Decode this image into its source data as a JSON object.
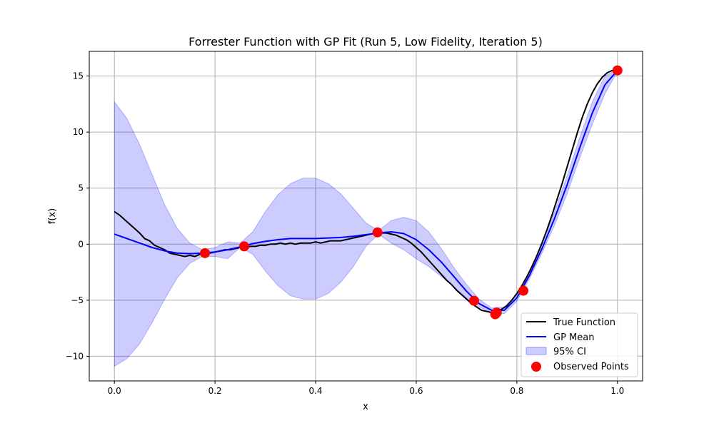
{
  "chart_data": {
    "type": "line",
    "title": "Forrester Function with GP Fit (Run 5, Low Fidelity, Iteration 5)",
    "xlabel": "x",
    "ylabel": "f(x)",
    "xlim": [
      -0.05,
      1.05
    ],
    "ylim": [
      -12.2,
      17.2
    ],
    "xticks": [
      0.0,
      0.2,
      0.4,
      0.6,
      0.8,
      1.0
    ],
    "xtick_labels": [
      "0.0",
      "0.2",
      "0.4",
      "0.6",
      "0.8",
      "1.0"
    ],
    "yticks": [
      -10,
      -5,
      0,
      5,
      10,
      15
    ],
    "ytick_labels": [
      "−10",
      "−5",
      "0",
      "5",
      "10",
      "15"
    ],
    "grid": true,
    "legend_position": "lower-right",
    "series": [
      {
        "name": "True Function",
        "kind": "line",
        "color": "#000000",
        "x": [
          0.0,
          0.01,
          0.02,
          0.03,
          0.04,
          0.05,
          0.06,
          0.07,
          0.08,
          0.09,
          0.1,
          0.11,
          0.12,
          0.13,
          0.14,
          0.15,
          0.16,
          0.17,
          0.18,
          0.19,
          0.2,
          0.21,
          0.22,
          0.23,
          0.24,
          0.25,
          0.26,
          0.27,
          0.28,
          0.29,
          0.3,
          0.31,
          0.32,
          0.33,
          0.34,
          0.35,
          0.36,
          0.37,
          0.38,
          0.39,
          0.4,
          0.41,
          0.42,
          0.43,
          0.44,
          0.45,
          0.46,
          0.47,
          0.48,
          0.49,
          0.5,
          0.51,
          0.52,
          0.53,
          0.54,
          0.55,
          0.56,
          0.57,
          0.58,
          0.59,
          0.6,
          0.61,
          0.62,
          0.63,
          0.64,
          0.65,
          0.66,
          0.67,
          0.68,
          0.69,
          0.7,
          0.71,
          0.72,
          0.73,
          0.74,
          0.75,
          0.76,
          0.77,
          0.78,
          0.79,
          0.8,
          0.81,
          0.82,
          0.83,
          0.84,
          0.85,
          0.86,
          0.87,
          0.88,
          0.89,
          0.9,
          0.91,
          0.92,
          0.93,
          0.94,
          0.95,
          0.96,
          0.97,
          0.98,
          0.99,
          1.0
        ],
        "y": [
          2.9,
          2.6,
          2.2,
          1.8,
          1.4,
          1.0,
          0.5,
          0.3,
          -0.1,
          -0.3,
          -0.5,
          -0.8,
          -0.9,
          -1.0,
          -1.1,
          -1.0,
          -1.1,
          -0.9,
          -0.9,
          -0.8,
          -0.7,
          -0.6,
          -0.5,
          -0.5,
          -0.4,
          -0.3,
          -0.3,
          -0.2,
          -0.2,
          -0.1,
          -0.1,
          0.0,
          0.0,
          0.1,
          0.0,
          0.1,
          0.0,
          0.1,
          0.1,
          0.1,
          0.2,
          0.1,
          0.2,
          0.3,
          0.3,
          0.3,
          0.4,
          0.5,
          0.6,
          0.7,
          0.8,
          0.9,
          1.0,
          1.0,
          1.0,
          0.9,
          0.8,
          0.6,
          0.4,
          0.1,
          -0.3,
          -0.7,
          -1.2,
          -1.7,
          -2.2,
          -2.7,
          -3.2,
          -3.6,
          -4.1,
          -4.5,
          -4.9,
          -5.3,
          -5.6,
          -5.9,
          -6.0,
          -6.1,
          -6.0,
          -5.8,
          -5.5,
          -5.0,
          -4.4,
          -3.7,
          -2.9,
          -2.0,
          -1.0,
          0.1,
          1.3,
          2.6,
          4.0,
          5.4,
          6.9,
          8.4,
          9.9,
          11.3,
          12.5,
          13.5,
          14.3,
          14.9,
          15.3,
          15.5,
          15.5
        ]
      },
      {
        "name": "GP Mean",
        "kind": "line",
        "color": "#0000ff",
        "x": [
          0.0,
          0.025,
          0.05,
          0.075,
          0.1,
          0.125,
          0.15,
          0.175,
          0.2,
          0.225,
          0.25,
          0.275,
          0.3,
          0.325,
          0.35,
          0.375,
          0.4,
          0.425,
          0.45,
          0.475,
          0.5,
          0.525,
          0.55,
          0.575,
          0.6,
          0.625,
          0.65,
          0.675,
          0.7,
          0.725,
          0.75,
          0.775,
          0.8,
          0.825,
          0.85,
          0.875,
          0.9,
          0.925,
          0.95,
          0.975,
          1.0
        ],
        "y": [
          0.9,
          0.5,
          0.1,
          -0.3,
          -0.6,
          -0.8,
          -0.85,
          -0.8,
          -0.7,
          -0.5,
          -0.25,
          0.05,
          0.25,
          0.4,
          0.5,
          0.5,
          0.5,
          0.55,
          0.6,
          0.7,
          0.85,
          1.0,
          1.1,
          0.95,
          0.4,
          -0.5,
          -1.6,
          -2.9,
          -4.2,
          -5.3,
          -5.9,
          -5.9,
          -4.8,
          -2.8,
          -0.4,
          2.3,
          5.3,
          8.6,
          11.7,
          14.2,
          15.5
        ]
      },
      {
        "name": "95% CI",
        "kind": "band",
        "color": "#0000ff",
        "x": [
          0.0,
          0.025,
          0.05,
          0.075,
          0.1,
          0.125,
          0.15,
          0.175,
          0.2,
          0.225,
          0.25,
          0.275,
          0.3,
          0.325,
          0.35,
          0.375,
          0.4,
          0.425,
          0.45,
          0.475,
          0.5,
          0.525,
          0.55,
          0.575,
          0.6,
          0.625,
          0.65,
          0.675,
          0.7,
          0.725,
          0.75,
          0.775,
          0.8,
          0.825,
          0.85,
          0.875,
          0.9,
          0.925,
          0.95,
          0.975,
          1.0
        ],
        "upper": [
          12.7,
          11.2,
          8.9,
          6.2,
          3.5,
          1.4,
          0.1,
          -0.5,
          -0.3,
          0.2,
          0.1,
          1.1,
          2.9,
          4.4,
          5.4,
          5.9,
          5.9,
          5.4,
          4.5,
          3.2,
          1.9,
          1.2,
          2.1,
          2.4,
          2.1,
          1.1,
          -0.4,
          -2.1,
          -3.6,
          -4.9,
          -5.7,
          -5.6,
          -4.5,
          -2.5,
          0.0,
          2.9,
          6.1,
          9.5,
          12.7,
          15.0,
          15.6
        ],
        "lower": [
          -10.9,
          -10.2,
          -8.9,
          -7.0,
          -4.9,
          -3.0,
          -1.7,
          -1.1,
          -1.1,
          -1.3,
          -0.3,
          -0.9,
          -2.4,
          -3.7,
          -4.6,
          -4.9,
          -4.9,
          -4.4,
          -3.4,
          -2.0,
          -0.2,
          0.9,
          0.1,
          -0.5,
          -1.3,
          -2.0,
          -2.9,
          -3.8,
          -4.8,
          -5.6,
          -6.1,
          -6.2,
          -5.1,
          -3.1,
          -0.8,
          1.7,
          4.5,
          7.7,
          10.7,
          13.4,
          15.4
        ]
      },
      {
        "name": "Observed Points",
        "kind": "scatter",
        "color": "#ff0000",
        "x": [
          0.18,
          0.258,
          0.523,
          0.715,
          0.757,
          0.76,
          0.813,
          1.0
        ],
        "y": [
          -0.8,
          -0.2,
          1.05,
          -5.05,
          -6.25,
          -6.1,
          -4.15,
          15.5
        ]
      }
    ]
  }
}
